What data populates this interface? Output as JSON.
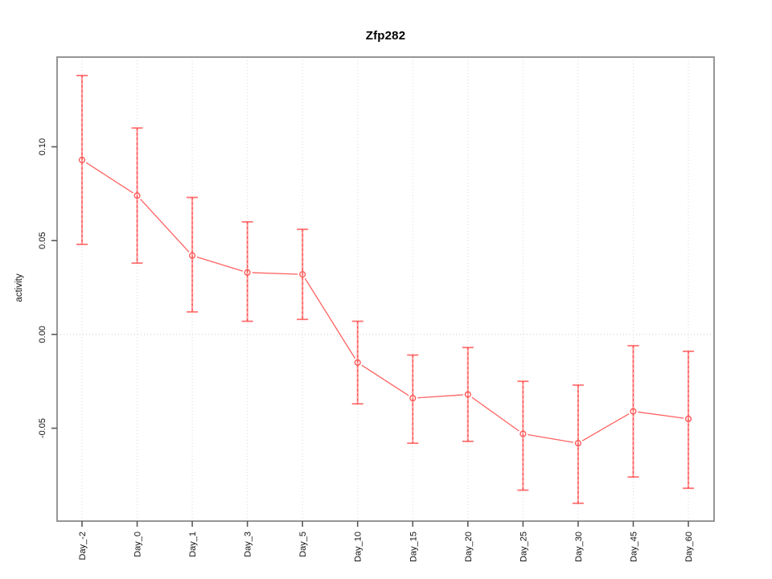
{
  "window": {
    "background": "#ffffff"
  },
  "chart_data": {
    "type": "line",
    "title": "Zfp282",
    "xlabel": "",
    "ylabel": "activity",
    "legend": "none",
    "grid": "vertical dotted line at each category; horizontal dotted line at y=0",
    "categories": [
      "Day_-2",
      "Day_0",
      "Day_1",
      "Day_3",
      "Day_5",
      "Day_10",
      "Day_15",
      "Day_20",
      "Day_25",
      "Day_30",
      "Day_45",
      "Day_60"
    ],
    "series": [
      {
        "name": "activity",
        "values": [
          0.093,
          0.074,
          0.042,
          0.033,
          0.032,
          -0.015,
          -0.034,
          -0.032,
          -0.053,
          -0.058,
          -0.041,
          -0.045
        ],
        "error_upper": [
          0.138,
          0.11,
          0.073,
          0.06,
          0.056,
          0.007,
          -0.011,
          -0.007,
          -0.025,
          -0.027,
          -0.006,
          -0.009
        ],
        "error_lower": [
          0.048,
          0.038,
          0.012,
          0.007,
          0.008,
          -0.037,
          -0.058,
          -0.057,
          -0.083,
          -0.09,
          -0.076,
          -0.082
        ]
      }
    ],
    "yticks": [
      -0.05,
      0.0,
      0.05,
      0.1
    ],
    "ytick_labels": [
      "-0.05",
      "0.00",
      "0.05",
      "0.10"
    ],
    "ylim": [
      -0.0995,
      0.1478
    ],
    "marker": "open-circle",
    "colors": {
      "line": "#ff5252",
      "marker": "#ff5252",
      "error_bar": "#ff9c9c",
      "error_bar_core": "#ff4343",
      "frame": "#8a8a8a",
      "tick": "#5a5a5a",
      "grid": "#d9d9d9",
      "zero_line": "#cccccc",
      "tick_text": "#111111",
      "title_text": "#000000"
    }
  }
}
